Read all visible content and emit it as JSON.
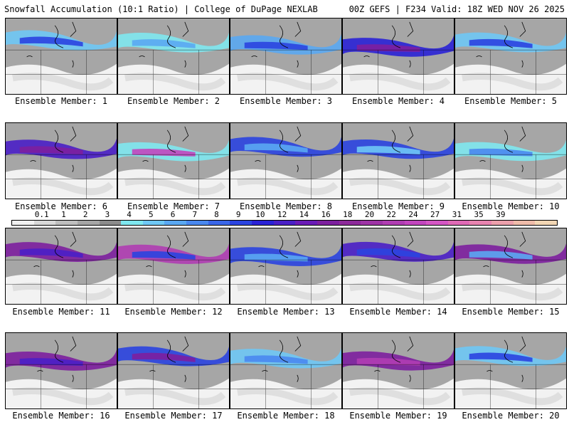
{
  "header": {
    "left_title": "Snowfall Accumulation (10:1 Ratio) | College of DuPage NEXLAB",
    "right_title": "00Z GEFS | F234 Valid: 18Z WED NOV 26 2025"
  },
  "colorbar": {
    "labels": [
      "0.1",
      "1",
      "2",
      "3",
      "4",
      "5",
      "6",
      "7",
      "8",
      "9",
      "10",
      "12",
      "14",
      "16",
      "18",
      "20",
      "22",
      "24",
      "27",
      "31",
      "35",
      "39"
    ],
    "colors": [
      "#f2f2f2",
      "#d9d9d9",
      "#bfbfbf",
      "#a6a6a6",
      "#8c8c8c",
      "#7fe8f0",
      "#6fc8f5",
      "#5aa8f2",
      "#4a88ef",
      "#3a66e8",
      "#2b44e0",
      "#2a22d6",
      "#4a1fc6",
      "#6a1ab6",
      "#7d1f9e",
      "#8d2a9a",
      "#9e34a6",
      "#b03db2",
      "#c246be",
      "#d456c4",
      "#e06ab6",
      "#e884b0",
      "#eca0ac",
      "#efbcaa",
      "#f2d6b4"
    ]
  },
  "members": [
    {
      "caption": "Ensemble Member: 1"
    },
    {
      "caption": "Ensemble Member: 2"
    },
    {
      "caption": "Ensemble Member: 3"
    },
    {
      "caption": "Ensemble Member: 4"
    },
    {
      "caption": "Ensemble Member: 5"
    },
    {
      "caption": "Ensemble Member: 6"
    },
    {
      "caption": "Ensemble Member: 7"
    },
    {
      "caption": "Ensemble Member: 8"
    },
    {
      "caption": "Ensemble Member: 9"
    },
    {
      "caption": "Ensemble Member: 10"
    },
    {
      "caption": "Ensemble Member: 11"
    },
    {
      "caption": "Ensemble Member: 12"
    },
    {
      "caption": "Ensemble Member: 13"
    },
    {
      "caption": "Ensemble Member: 14"
    },
    {
      "caption": "Ensemble Member: 15"
    },
    {
      "caption": "Ensemble Member: 16"
    },
    {
      "caption": "Ensemble Member: 17"
    },
    {
      "caption": "Ensemble Member: 18"
    },
    {
      "caption": "Ensemble Member: 19"
    },
    {
      "caption": "Ensemble Member: 20"
    }
  ]
}
